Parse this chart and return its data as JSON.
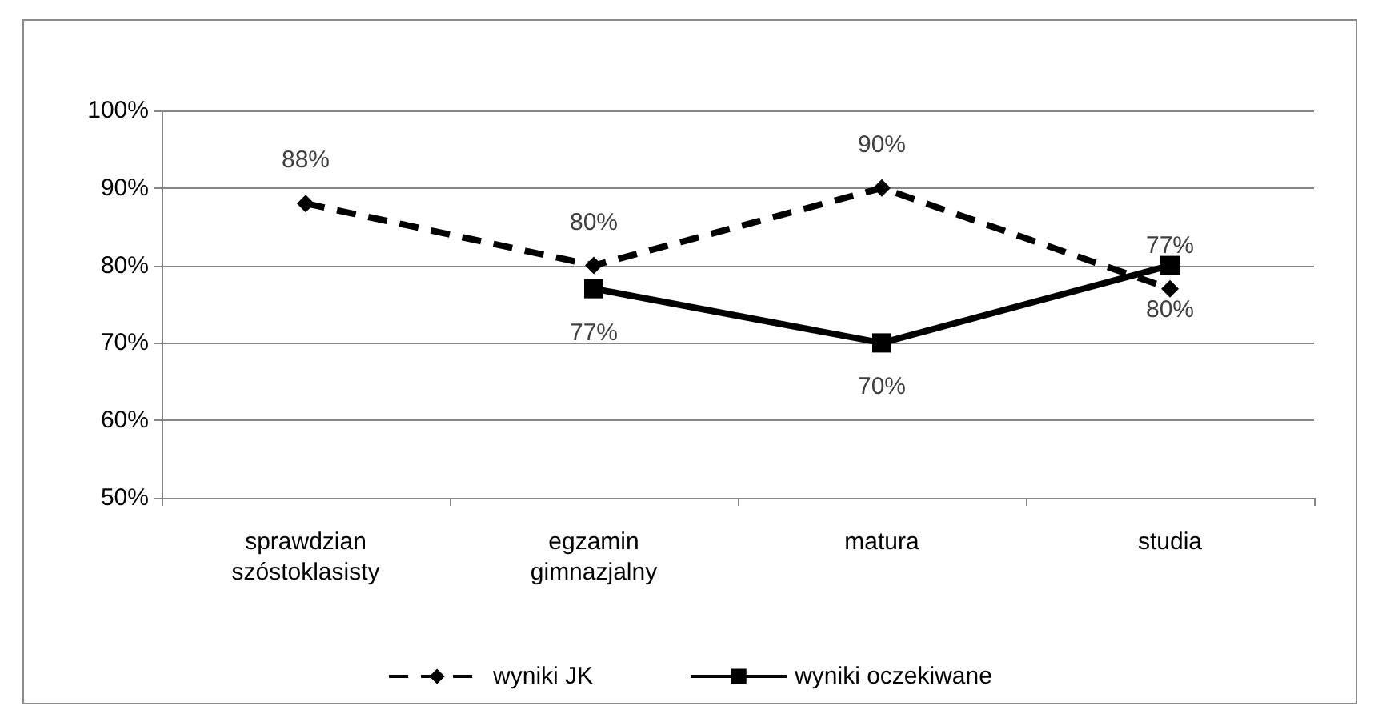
{
  "chart_data": {
    "type": "line",
    "categories": [
      "sprawdzian\nszóstoklasisty",
      "egzamin\ngimnazjalny",
      "matura",
      "studia"
    ],
    "series": [
      {
        "name": "wyniki JK",
        "color": "#000000",
        "values": [
          88,
          80,
          90,
          77
        ],
        "marker": "diamond",
        "line_style": "dashed",
        "value_labels": [
          "88%",
          "80%",
          "90%",
          "77%"
        ]
      },
      {
        "name": "wyniki oczekiwane",
        "color": "#000000",
        "values": [
          null,
          77,
          70,
          80
        ],
        "marker": "square",
        "line_style": "solid",
        "value_labels": [
          null,
          "77%",
          "70%",
          "80%"
        ]
      }
    ],
    "ylim": [
      50,
      100
    ],
    "yticks": [
      {
        "value": 50,
        "label": "50%"
      },
      {
        "value": 60,
        "label": "60%"
      },
      {
        "value": 70,
        "label": "70%"
      },
      {
        "value": 80,
        "label": "80%"
      },
      {
        "value": 90,
        "label": "90%"
      },
      {
        "value": 100,
        "label": "100%"
      }
    ],
    "grid": "y",
    "legend": "bottom"
  }
}
